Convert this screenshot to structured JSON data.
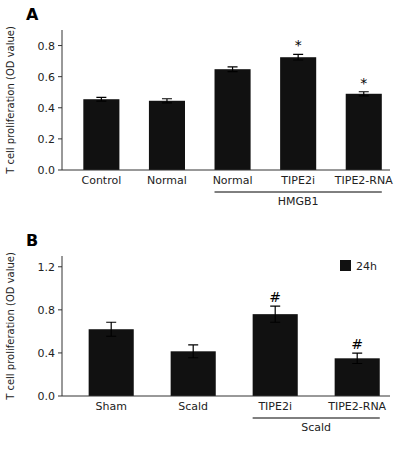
{
  "chart_data": [
    {
      "type": "bar",
      "panel_label": "A",
      "categories": [
        "Control",
        "Normal",
        "Normal",
        "TIPE2i",
        "TIPE2-RNA"
      ],
      "values": [
        0.455,
        0.445,
        0.648,
        0.725,
        0.49
      ],
      "errors": [
        0.012,
        0.013,
        0.015,
        0.018,
        0.013
      ],
      "color": "#111111",
      "ylabel": "T cell proliferation (OD value)",
      "ylim": [
        0,
        0.9
      ],
      "yticks": [
        {
          "value": 0,
          "label": "0.0"
        },
        0.2,
        0.4,
        0.6,
        0.8
      ],
      "significance": [
        null,
        null,
        null,
        "*",
        "*"
      ],
      "groups": [
        {
          "label": "HMGB1",
          "start": 2,
          "end": 4
        }
      ],
      "grid": false
    },
    {
      "type": "bar",
      "panel_label": "B",
      "categories": [
        "Sham",
        "Scald",
        "TIPE2i",
        "TIPE2-RNA"
      ],
      "series": [
        {
          "name": "24h",
          "color": "#111111",
          "values": [
            0.62,
            0.415,
            0.76,
            0.35
          ],
          "errors": [
            0.065,
            0.06,
            0.075,
            0.048
          ]
        }
      ],
      "ylabel": "T cell proliferation (OD value)",
      "ylim": [
        0,
        1.3
      ],
      "yticks": [
        {
          "value": 0,
          "label": "0.0"
        },
        0.4,
        0.8,
        1.2
      ],
      "significance": [
        null,
        null,
        "#",
        "#"
      ],
      "groups": [
        {
          "label": "Scald",
          "start": 2,
          "end": 3
        }
      ],
      "legend": "upper right",
      "grid": false
    }
  ]
}
